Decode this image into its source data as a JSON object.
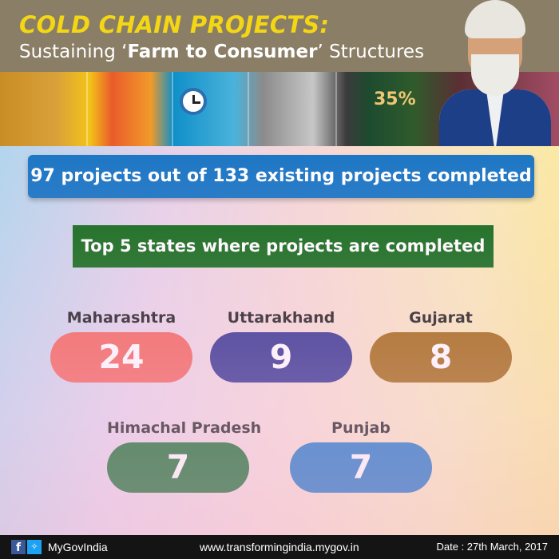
{
  "header": {
    "title": "COLD CHAIN PROJECTS:",
    "subtitle_pre": "Sustaining ‘",
    "subtitle_bold": "Farm to Consumer",
    "subtitle_post": "’ Structures"
  },
  "banner": {
    "badge_text": "35%",
    "icons": [
      "clock-icon"
    ]
  },
  "headline": "97 projects out of 133 existing projects completed",
  "subhead": "Top 5 states where projects are completed",
  "states": [
    {
      "name": "Maharashtra",
      "count": "24",
      "color": "#f1635a"
    },
    {
      "name": "Uttarakhand",
      "count": "9",
      "color": "#2e2f8c"
    },
    {
      "name": "Gujarat",
      "count": "8",
      "color": "#a0650c"
    },
    {
      "name": "Himachal Pradesh",
      "count": "7",
      "color": "#0e6a28"
    },
    {
      "name": "Punjab",
      "count": "7",
      "color": "#1672c2"
    }
  ],
  "footer": {
    "social_icons": [
      "facebook-icon",
      "twitter-icon"
    ],
    "handle": "MyGovIndia",
    "website": "www.transformingindia.mygov.in",
    "date": "Date : 27th March, 2017"
  },
  "colors": {
    "header_bg": "#8b7e66",
    "title": "#f3d614",
    "headline_bg": "#1b76c4",
    "subhead_bg": "#0f6a18",
    "footer_bg": "#141414"
  }
}
